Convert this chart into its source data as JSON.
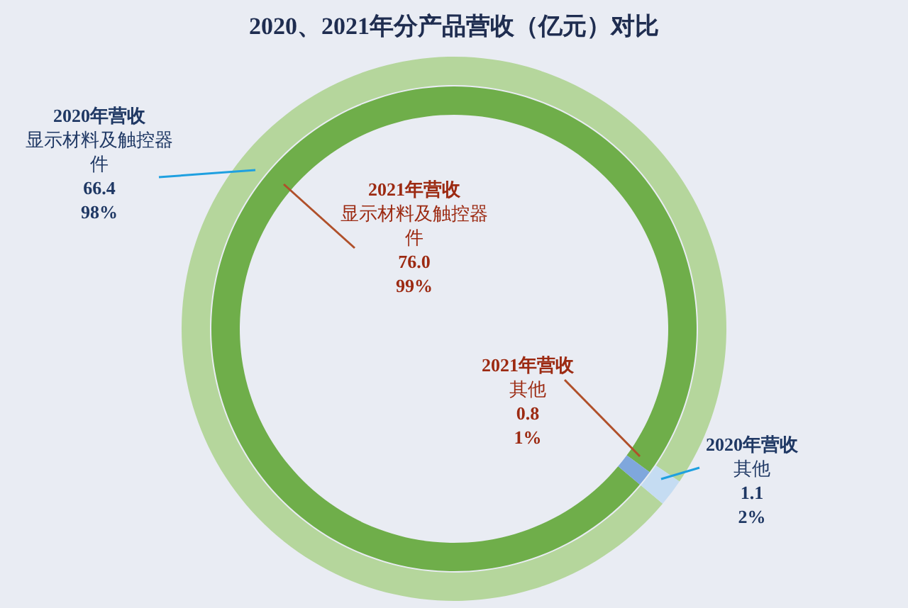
{
  "chart_data": [
    {
      "type": "donut",
      "title": "2020、2021年分产品营收（亿元）对比",
      "categories": [
        "显示材料及触控器件",
        "其他"
      ],
      "series": [
        {
          "name": "2020年营收",
          "colors": [
            "#b5d69c",
            "#c5dcf2"
          ],
          "values": [
            66.4,
            1.1
          ],
          "value_labels": [
            "66.4\n98%",
            "1.1\n2%"
          ]
        }
      ]
    },
    {
      "type": "donut",
      "categories": [
        "显示材料及触控器件",
        "其他"
      ],
      "series": [
        {
          "name": "2021年营收",
          "colors": [
            "#6fae4a",
            "#7fa7dc"
          ],
          "values": [
            76.0,
            0.8
          ],
          "value_labels": [
            "76.0\n99%",
            "0.8\n1%"
          ]
        }
      ]
    }
  ]
}
